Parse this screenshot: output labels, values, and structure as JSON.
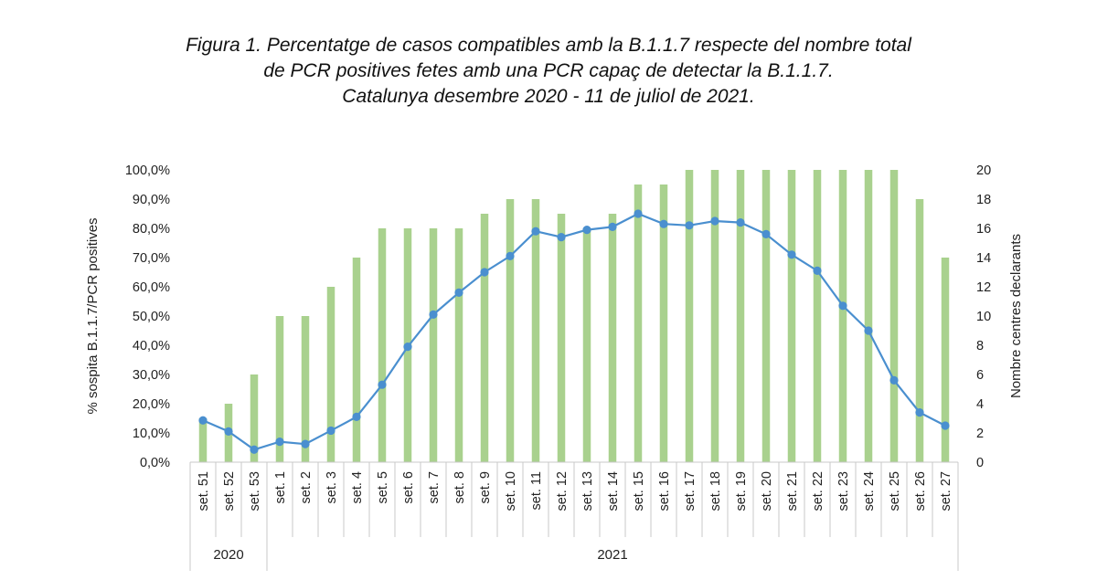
{
  "title_lines": [
    "Figura 1. Percentatge de casos compatibles amb la B.1.1.7 respecte del nombre total",
    "de PCR positives fetes amb una PCR capaç de detectar la B.1.1.7.",
    "Catalunya desembre 2020 - 11 de juliol de 2021."
  ],
  "chart_data": {
    "type": "bar",
    "categories": [
      "set. 51",
      "set. 52",
      "set. 53",
      "set. 1",
      "set. 2",
      "set. 3",
      "set. 4",
      "set. 5",
      "set. 6",
      "set. 7",
      "set. 8",
      "set. 9",
      "set. 10",
      "set. 11",
      "set. 12",
      "set. 13",
      "set. 14",
      "set. 15",
      "set. 16",
      "set. 17",
      "set. 18",
      "set. 19",
      "set. 20",
      "set. 21",
      "set. 22",
      "set. 23",
      "set. 24",
      "set. 25",
      "set. 26",
      "set. 27"
    ],
    "year_groups": [
      {
        "label": "2020",
        "count": 3
      },
      {
        "label": "2021",
        "count": 27
      }
    ],
    "series": [
      {
        "type": "bar",
        "axis": "right",
        "color": "#a9d18e",
        "values": [
          3,
          4,
          6,
          10,
          10,
          12,
          14,
          16,
          16,
          16,
          16,
          17,
          18,
          18,
          17,
          16,
          17,
          19,
          19,
          20,
          20,
          20,
          20,
          20,
          20,
          20,
          20,
          20,
          18,
          14
        ]
      },
      {
        "type": "line",
        "axis": "left",
        "color": "#4a8fcf",
        "values": [
          14.3,
          10.5,
          4.3,
          7.0,
          6.2,
          10.8,
          15.5,
          26.5,
          39.5,
          50.5,
          58.0,
          65.0,
          70.5,
          79.0,
          77.0,
          79.5,
          80.5,
          85.0,
          81.5,
          81.0,
          82.5,
          82.0,
          78.0,
          71.0,
          65.5,
          53.5,
          45.0,
          28.0,
          17.0,
          12.5
        ]
      }
    ],
    "ylabel": "% sospita B.1.1.7/PCR positives",
    "y2label": "Nombre centres declarants",
    "ylim": [
      0,
      100
    ],
    "y2lim": [
      0,
      20
    ],
    "yticks": [
      "0,0%",
      "10,0%",
      "20,0%",
      "30,0%",
      "40,0%",
      "50,0%",
      "60,0%",
      "70,0%",
      "80,0%",
      "90,0%",
      "100,0%"
    ],
    "y2ticks": [
      "0",
      "2",
      "4",
      "6",
      "8",
      "10",
      "12",
      "14",
      "16",
      "18",
      "20"
    ],
    "grid": false,
    "legend": "none"
  }
}
